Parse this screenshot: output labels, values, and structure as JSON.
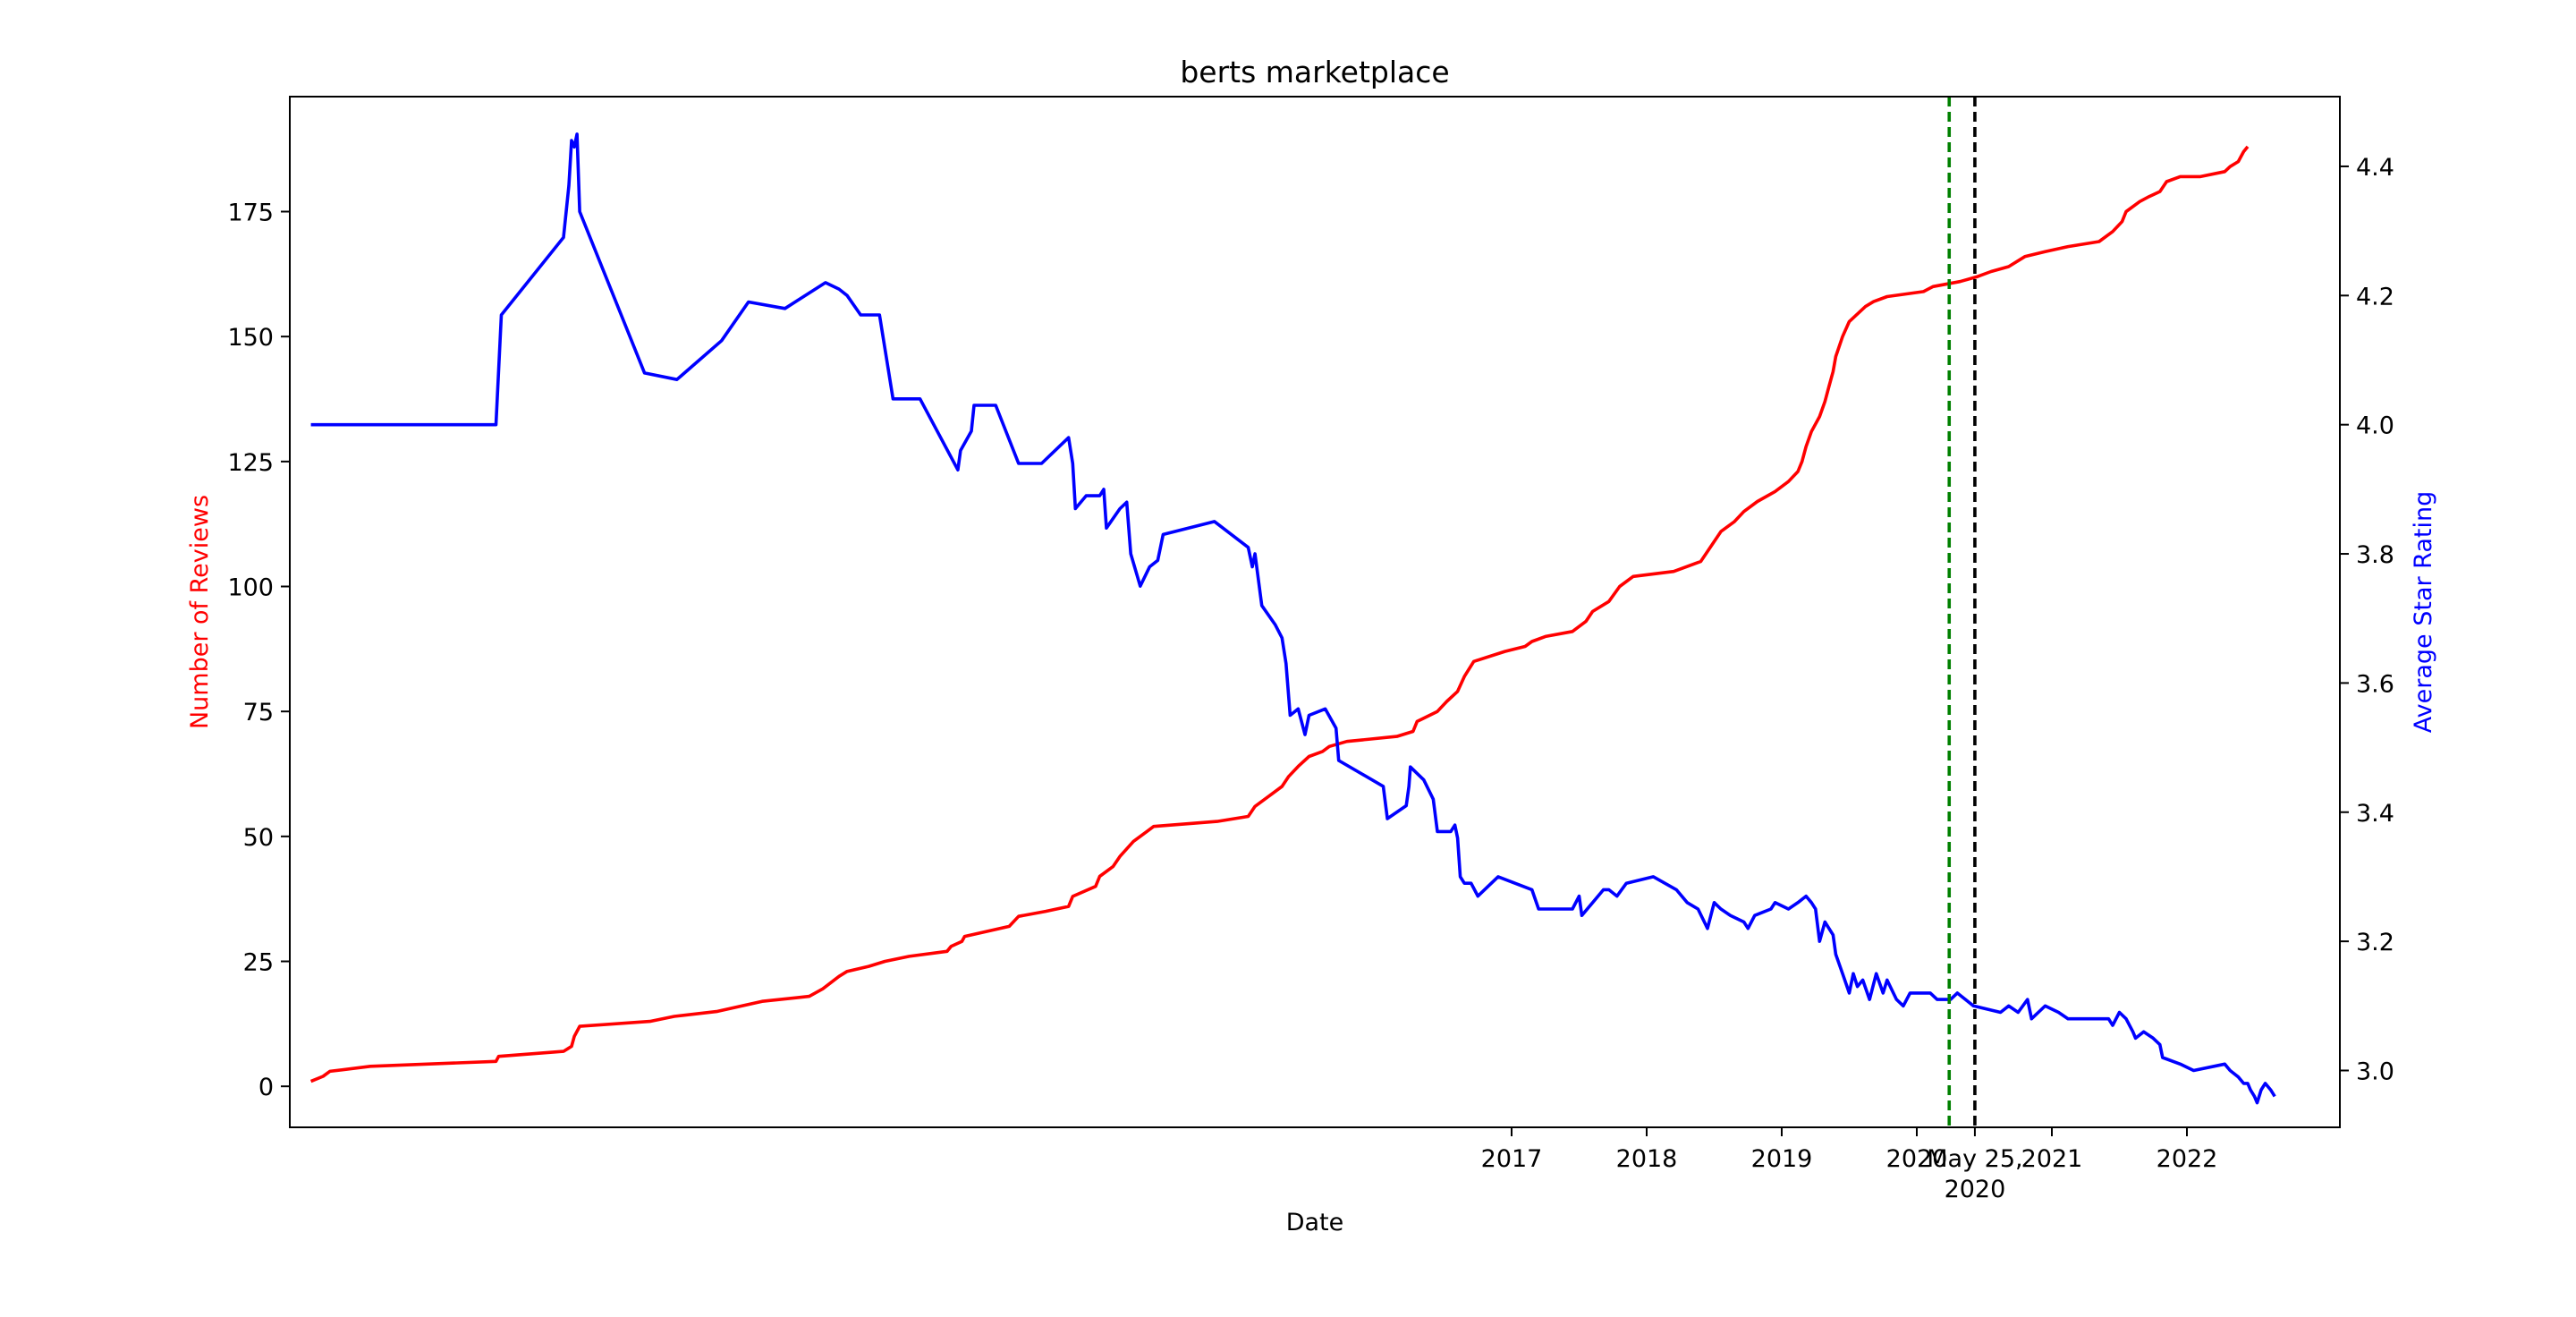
{
  "chart_data": {
    "type": "line",
    "title": "berts marketplace",
    "xlabel": "Date",
    "ylabel_left": "Number of Reviews",
    "ylabel_right": "Average Star Rating",
    "colors": {
      "reviews": "#ff0000",
      "rating": "#0000ff",
      "marker_1": "#008000",
      "marker_2": "#000000"
    },
    "grid": false,
    "legend": "none",
    "ylim_left": [
      -8.2,
      198
    ],
    "ylim_right": [
      2.912,
      4.508
    ],
    "yticks_left": [
      0,
      25,
      50,
      75,
      100,
      125,
      150,
      175
    ],
    "yticks_right": [
      3.0,
      3.2,
      3.4,
      3.6,
      3.8,
      4.0,
      4.2,
      4.4
    ],
    "xtick_labels": [
      "2017",
      "2018",
      "2019",
      "2020",
      "2021",
      "2022"
    ],
    "xtick_years": [
      2017,
      2018,
      2019,
      2020,
      2021,
      2022
    ],
    "vlines": [
      {
        "x": 2020.24,
        "color": "#008000",
        "style": "dashed",
        "label": ""
      },
      {
        "x": 2020.43,
        "color": "#000000",
        "style": "dashed",
        "label": "May 25,\n2020"
      }
    ],
    "series": [
      {
        "name": "Number of Reviews",
        "axis": "left",
        "color": "#ff0000",
        "points": [
          [
            2008.11,
            1
          ],
          [
            2008.2,
            2
          ],
          [
            2008.25,
            3
          ],
          [
            2008.55,
            4
          ],
          [
            2009.48,
            5
          ],
          [
            2009.5,
            6
          ],
          [
            2009.98,
            7
          ],
          [
            2010.04,
            8
          ],
          [
            2010.06,
            10
          ],
          [
            2010.1,
            12
          ],
          [
            2010.62,
            13
          ],
          [
            2010.8,
            14
          ],
          [
            2011.12,
            15
          ],
          [
            2011.45,
            17
          ],
          [
            2011.8,
            18
          ],
          [
            2011.9,
            19.5
          ],
          [
            2012.02,
            22
          ],
          [
            2012.08,
            23
          ],
          [
            2012.24,
            24
          ],
          [
            2012.36,
            25
          ],
          [
            2012.54,
            26
          ],
          [
            2012.82,
            27
          ],
          [
            2012.85,
            28
          ],
          [
            2012.93,
            29
          ],
          [
            2012.95,
            30
          ],
          [
            2013.28,
            32
          ],
          [
            2013.35,
            34
          ],
          [
            2013.55,
            35
          ],
          [
            2013.72,
            36
          ],
          [
            2013.75,
            38
          ],
          [
            2013.92,
            40
          ],
          [
            2013.95,
            42
          ],
          [
            2014.05,
            44
          ],
          [
            2014.1,
            46
          ],
          [
            2014.2,
            49
          ],
          [
            2014.3,
            51
          ],
          [
            2014.35,
            52
          ],
          [
            2014.82,
            53
          ],
          [
            2015.05,
            54
          ],
          [
            2015.1,
            56
          ],
          [
            2015.2,
            58
          ],
          [
            2015.3,
            60
          ],
          [
            2015.35,
            62
          ],
          [
            2015.42,
            64
          ],
          [
            2015.5,
            66
          ],
          [
            2015.6,
            67
          ],
          [
            2015.65,
            68
          ],
          [
            2015.78,
            69
          ],
          [
            2016.15,
            70
          ],
          [
            2016.27,
            71
          ],
          [
            2016.3,
            73
          ],
          [
            2016.45,
            75
          ],
          [
            2016.52,
            77
          ],
          [
            2016.6,
            79
          ],
          [
            2016.65,
            82
          ],
          [
            2016.72,
            85
          ],
          [
            2016.95,
            87
          ],
          [
            2017.1,
            88
          ],
          [
            2017.15,
            89
          ],
          [
            2017.25,
            90
          ],
          [
            2017.45,
            91
          ],
          [
            2017.55,
            93
          ],
          [
            2017.6,
            95
          ],
          [
            2017.72,
            97
          ],
          [
            2017.8,
            100
          ],
          [
            2017.9,
            102
          ],
          [
            2018.2,
            103
          ],
          [
            2018.4,
            105
          ],
          [
            2018.45,
            107
          ],
          [
            2018.5,
            109
          ],
          [
            2018.55,
            111
          ],
          [
            2018.65,
            113
          ],
          [
            2018.72,
            115
          ],
          [
            2018.82,
            117
          ],
          [
            2018.95,
            119
          ],
          [
            2019.05,
            121
          ],
          [
            2019.12,
            123
          ],
          [
            2019.15,
            125
          ],
          [
            2019.18,
            128
          ],
          [
            2019.22,
            131
          ],
          [
            2019.28,
            134
          ],
          [
            2019.32,
            137
          ],
          [
            2019.35,
            140
          ],
          [
            2019.38,
            143
          ],
          [
            2019.4,
            146
          ],
          [
            2019.45,
            150
          ],
          [
            2019.5,
            153
          ],
          [
            2019.62,
            156
          ],
          [
            2019.68,
            157
          ],
          [
            2019.78,
            158
          ],
          [
            2020.05,
            159
          ],
          [
            2020.12,
            160
          ],
          [
            2020.32,
            161
          ],
          [
            2020.45,
            162
          ],
          [
            2020.55,
            163
          ],
          [
            2020.68,
            164
          ],
          [
            2020.8,
            166
          ],
          [
            2020.95,
            167
          ],
          [
            2021.12,
            168
          ],
          [
            2021.35,
            169
          ],
          [
            2021.45,
            171
          ],
          [
            2021.52,
            173
          ],
          [
            2021.55,
            175
          ],
          [
            2021.65,
            177
          ],
          [
            2021.72,
            178
          ],
          [
            2021.8,
            179
          ],
          [
            2021.85,
            181
          ],
          [
            2021.95,
            182
          ],
          [
            2022.1,
            182
          ],
          [
            2022.28,
            183
          ],
          [
            2022.32,
            184
          ],
          [
            2022.38,
            185
          ],
          [
            2022.42,
            187
          ],
          [
            2022.45,
            188
          ]
        ]
      },
      {
        "name": "Average Star Rating",
        "axis": "right",
        "color": "#0000ff",
        "points": [
          [
            2008.11,
            4.0
          ],
          [
            2009.48,
            4.0
          ],
          [
            2009.52,
            4.17
          ],
          [
            2009.98,
            4.29
          ],
          [
            2010.02,
            4.37
          ],
          [
            2010.04,
            4.44
          ],
          [
            2010.06,
            4.43
          ],
          [
            2010.08,
            4.45
          ],
          [
            2010.1,
            4.33
          ],
          [
            2010.58,
            4.08
          ],
          [
            2010.82,
            4.07
          ],
          [
            2011.15,
            4.13
          ],
          [
            2011.35,
            4.19
          ],
          [
            2011.62,
            4.18
          ],
          [
            2011.92,
            4.22
          ],
          [
            2012.02,
            4.21
          ],
          [
            2012.08,
            4.2
          ],
          [
            2012.18,
            4.17
          ],
          [
            2012.32,
            4.17
          ],
          [
            2012.42,
            4.04
          ],
          [
            2012.62,
            4.04
          ],
          [
            2012.9,
            3.93
          ],
          [
            2012.92,
            3.96
          ],
          [
            2013.0,
            3.99
          ],
          [
            2013.02,
            4.03
          ],
          [
            2013.18,
            4.03
          ],
          [
            2013.35,
            3.94
          ],
          [
            2013.52,
            3.94
          ],
          [
            2013.72,
            3.98
          ],
          [
            2013.75,
            3.94
          ],
          [
            2013.77,
            3.87
          ],
          [
            2013.85,
            3.89
          ],
          [
            2013.95,
            3.89
          ],
          [
            2013.98,
            3.9
          ],
          [
            2014.0,
            3.84
          ],
          [
            2014.1,
            3.87
          ],
          [
            2014.15,
            3.88
          ],
          [
            2014.18,
            3.8
          ],
          [
            2014.25,
            3.75
          ],
          [
            2014.32,
            3.78
          ],
          [
            2014.38,
            3.79
          ],
          [
            2014.42,
            3.83
          ],
          [
            2014.8,
            3.85
          ],
          [
            2015.05,
            3.81
          ],
          [
            2015.08,
            3.78
          ],
          [
            2015.1,
            3.8
          ],
          [
            2015.15,
            3.72
          ],
          [
            2015.25,
            3.69
          ],
          [
            2015.3,
            3.67
          ],
          [
            2015.33,
            3.63
          ],
          [
            2015.36,
            3.55
          ],
          [
            2015.42,
            3.56
          ],
          [
            2015.47,
            3.52
          ],
          [
            2015.5,
            3.55
          ],
          [
            2015.62,
            3.56
          ],
          [
            2015.7,
            3.53
          ],
          [
            2015.72,
            3.48
          ],
          [
            2016.05,
            3.44
          ],
          [
            2016.08,
            3.39
          ],
          [
            2016.22,
            3.41
          ],
          [
            2016.24,
            3.44
          ],
          [
            2016.25,
            3.47
          ],
          [
            2016.35,
            3.45
          ],
          [
            2016.42,
            3.42
          ],
          [
            2016.45,
            3.37
          ],
          [
            2016.55,
            3.37
          ],
          [
            2016.58,
            3.38
          ],
          [
            2016.6,
            3.36
          ],
          [
            2016.62,
            3.3
          ],
          [
            2016.65,
            3.29
          ],
          [
            2016.7,
            3.29
          ],
          [
            2016.75,
            3.27
          ],
          [
            2016.9,
            3.3
          ],
          [
            2017.15,
            3.28
          ],
          [
            2017.2,
            3.25
          ],
          [
            2017.45,
            3.25
          ],
          [
            2017.5,
            3.27
          ],
          [
            2017.52,
            3.24
          ],
          [
            2017.68,
            3.28
          ],
          [
            2017.72,
            3.28
          ],
          [
            2017.78,
            3.27
          ],
          [
            2017.85,
            3.29
          ],
          [
            2018.05,
            3.3
          ],
          [
            2018.22,
            3.28
          ],
          [
            2018.3,
            3.26
          ],
          [
            2018.38,
            3.25
          ],
          [
            2018.45,
            3.22
          ],
          [
            2018.5,
            3.26
          ],
          [
            2018.55,
            3.25
          ],
          [
            2018.62,
            3.24
          ],
          [
            2018.72,
            3.23
          ],
          [
            2018.75,
            3.22
          ],
          [
            2018.8,
            3.24
          ],
          [
            2018.92,
            3.25
          ],
          [
            2018.95,
            3.26
          ],
          [
            2019.05,
            3.25
          ],
          [
            2019.12,
            3.26
          ],
          [
            2019.18,
            3.27
          ],
          [
            2019.22,
            3.26
          ],
          [
            2019.25,
            3.25
          ],
          [
            2019.28,
            3.2
          ],
          [
            2019.32,
            3.23
          ],
          [
            2019.38,
            3.21
          ],
          [
            2019.4,
            3.18
          ],
          [
            2019.45,
            3.15
          ],
          [
            2019.5,
            3.12
          ],
          [
            2019.53,
            3.15
          ],
          [
            2019.56,
            3.13
          ],
          [
            2019.6,
            3.14
          ],
          [
            2019.65,
            3.11
          ],
          [
            2019.7,
            3.15
          ],
          [
            2019.75,
            3.12
          ],
          [
            2019.78,
            3.14
          ],
          [
            2019.85,
            3.11
          ],
          [
            2019.9,
            3.1
          ],
          [
            2019.95,
            3.12
          ],
          [
            2020.05,
            3.12
          ],
          [
            2020.1,
            3.12
          ],
          [
            2020.15,
            3.11
          ],
          [
            2020.25,
            3.11
          ],
          [
            2020.3,
            3.12
          ],
          [
            2020.42,
            3.1
          ],
          [
            2020.62,
            3.09
          ],
          [
            2020.68,
            3.1
          ],
          [
            2020.75,
            3.09
          ],
          [
            2020.82,
            3.11
          ],
          [
            2020.85,
            3.08
          ],
          [
            2020.9,
            3.09
          ],
          [
            2020.95,
            3.1
          ],
          [
            2021.05,
            3.09
          ],
          [
            2021.12,
            3.08
          ],
          [
            2021.25,
            3.08
          ],
          [
            2021.42,
            3.08
          ],
          [
            2021.45,
            3.07
          ],
          [
            2021.5,
            3.09
          ],
          [
            2021.55,
            3.08
          ],
          [
            2021.6,
            3.06
          ],
          [
            2021.62,
            3.05
          ],
          [
            2021.68,
            3.06
          ],
          [
            2021.75,
            3.05
          ],
          [
            2021.8,
            3.04
          ],
          [
            2021.82,
            3.02
          ],
          [
            2021.95,
            3.01
          ],
          [
            2022.05,
            3.0
          ],
          [
            2022.28,
            3.01
          ],
          [
            2022.32,
            3.0
          ],
          [
            2022.38,
            2.99
          ],
          [
            2022.42,
            2.98
          ],
          [
            2022.45,
            2.98
          ],
          [
            2022.47,
            2.97
          ],
          [
            2022.5,
            2.96
          ],
          [
            2022.52,
            2.95
          ],
          [
            2022.55,
            2.97
          ],
          [
            2022.58,
            2.98
          ],
          [
            2022.62,
            2.97
          ],
          [
            2022.65,
            2.96
          ]
        ]
      }
    ]
  }
}
